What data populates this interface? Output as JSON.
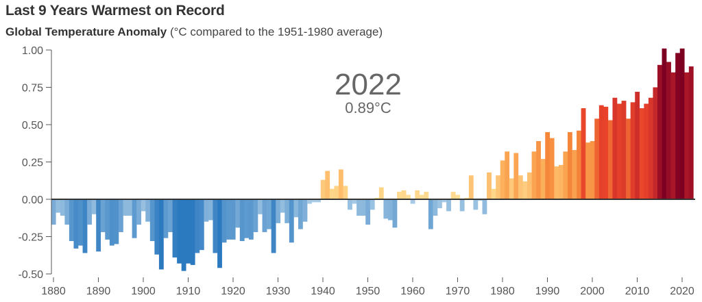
{
  "chart_data": {
    "type": "bar",
    "title": "Last 9 Years Warmest on Record",
    "subtitle_bold": "Global Temperature Anomaly",
    "subtitle_rest": " (°C compared to the 1951-1980 average)",
    "xlabel": "",
    "ylabel": "",
    "ylim": [
      -0.5,
      1.0
    ],
    "xlim": [
      1880,
      2022
    ],
    "grid": false,
    "y_ticks": [
      "1.00",
      "0.75",
      "0.50",
      "0.25",
      "0.00",
      "-0.25",
      "-0.50"
    ],
    "y_tick_values": [
      1.0,
      0.75,
      0.5,
      0.25,
      0.0,
      -0.25,
      -0.5
    ],
    "x_ticks": [
      "1880",
      "1890",
      "1900",
      "1910",
      "1920",
      "1930",
      "1940",
      "1950",
      "1960",
      "1970",
      "1980",
      "1990",
      "2000",
      "2010",
      "2020"
    ],
    "annotation": {
      "year": "2022",
      "value": "0.89°C"
    },
    "x_start": 1880,
    "values": [
      -0.17,
      -0.09,
      -0.11,
      -0.17,
      -0.28,
      -0.33,
      -0.31,
      -0.36,
      -0.17,
      -0.1,
      -0.35,
      -0.22,
      -0.27,
      -0.31,
      -0.3,
      -0.22,
      -0.11,
      -0.11,
      -0.26,
      -0.17,
      -0.08,
      -0.15,
      -0.28,
      -0.37,
      -0.47,
      -0.26,
      -0.22,
      -0.39,
      -0.43,
      -0.48,
      -0.43,
      -0.44,
      -0.36,
      -0.34,
      -0.15,
      -0.14,
      -0.36,
      -0.46,
      -0.29,
      -0.27,
      -0.27,
      -0.19,
      -0.28,
      -0.26,
      -0.27,
      -0.22,
      -0.1,
      -0.22,
      -0.2,
      -0.36,
      -0.16,
      -0.09,
      -0.16,
      -0.29,
      -0.12,
      -0.2,
      -0.15,
      -0.03,
      -0.02,
      -0.02,
      0.13,
      0.19,
      0.07,
      0.09,
      0.2,
      0.09,
      -0.07,
      -0.03,
      -0.11,
      -0.11,
      -0.17,
      -0.07,
      0.01,
      0.08,
      -0.13,
      -0.14,
      -0.19,
      0.05,
      0.06,
      0.03,
      -0.03,
      0.06,
      0.03,
      0.05,
      -0.2,
      -0.11,
      -0.06,
      -0.02,
      -0.08,
      0.05,
      0.03,
      -0.08,
      0.01,
      0.16,
      -0.07,
      -0.01,
      -0.1,
      0.18,
      0.07,
      0.16,
      0.26,
      0.32,
      0.14,
      0.31,
      0.16,
      0.12,
      0.18,
      0.32,
      0.39,
      0.27,
      0.45,
      0.41,
      0.22,
      0.23,
      0.32,
      0.45,
      0.33,
      0.46,
      0.61,
      0.38,
      0.39,
      0.54,
      0.63,
      0.62,
      0.53,
      0.68,
      0.64,
      0.66,
      0.54,
      0.65,
      0.72,
      0.61,
      0.64,
      0.68,
      0.75,
      0.9,
      1.01,
      0.92,
      0.85,
      0.98,
      1.01,
      0.85,
      0.89
    ],
    "colors": {
      "cold_light": "#a9cbe6",
      "cold_dark": "#2b79bf",
      "warm_0": "#fee39b",
      "warm_1": "#fdb35f",
      "warm_2": "#f5873a",
      "warm_3": "#e8432a",
      "warm_4": "#b81d2a",
      "warm_5": "#7d0022",
      "axis": "#333333"
    }
  }
}
